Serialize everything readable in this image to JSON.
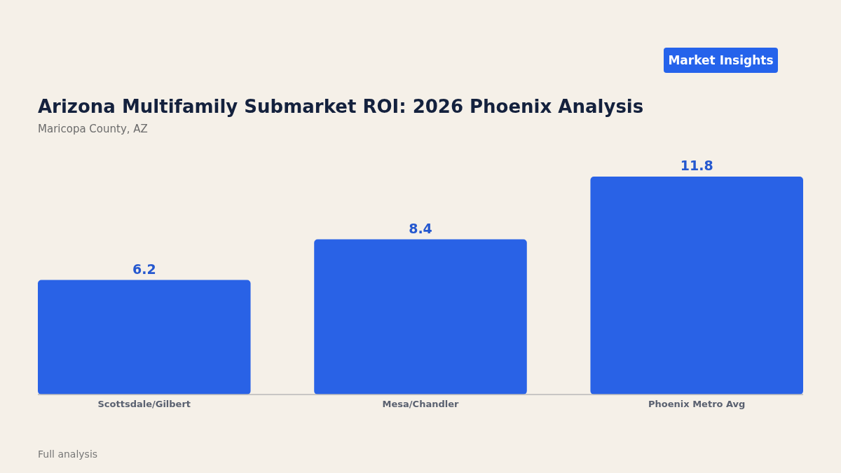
{
  "chart_data": {
    "type": "bar",
    "title": "Arizona Multifamily Submarket ROI: 2026 Phoenix Analysis",
    "subtitle": "Maricopa County, AZ",
    "categories": [
      "Scottsdale/Gilbert",
      "Mesa/Chandler",
      "Phoenix Metro Avg"
    ],
    "values": [
      6.2,
      8.4,
      11.8
    ],
    "color": "#2962e6",
    "data_labels": true,
    "tick_labels": "x",
    "annotations": [
      "Market Insights",
      "Full analysis"
    ]
  }
}
